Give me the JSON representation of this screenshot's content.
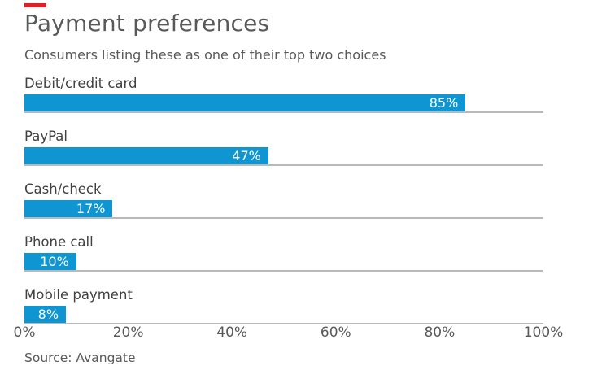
{
  "accent_color": "#e21f26",
  "header": {
    "title": "Payment preferences",
    "subtitle": "Consumers listing these as one of their top two choices"
  },
  "source_note": "Source: Avangate",
  "chart_data": {
    "type": "bar",
    "orientation": "horizontal",
    "title": "Payment preferences",
    "subtitle": "Consumers listing these as one of their top two choices",
    "categories": [
      "Debit/credit card",
      "PayPal",
      "Cash/check",
      "Phone call",
      "Mobile payment"
    ],
    "values": [
      85,
      47,
      17,
      10,
      8
    ],
    "value_labels": [
      "85%",
      "47%",
      "17%",
      "10%",
      "8%"
    ],
    "x_ticks": [
      "0%",
      "20%",
      "40%",
      "60%",
      "80%",
      "100%"
    ],
    "x_tick_values": [
      0,
      20,
      40,
      60,
      80,
      100
    ],
    "xlim": [
      0,
      100
    ],
    "xlabel": "",
    "ylabel": "",
    "grid": "row-baselines-only",
    "legend": "none",
    "bar_color": "#0f96d2",
    "gridline_color": "#b7b9bb",
    "value_label_position": "inside-end",
    "value_label_color": "#ffffff"
  }
}
